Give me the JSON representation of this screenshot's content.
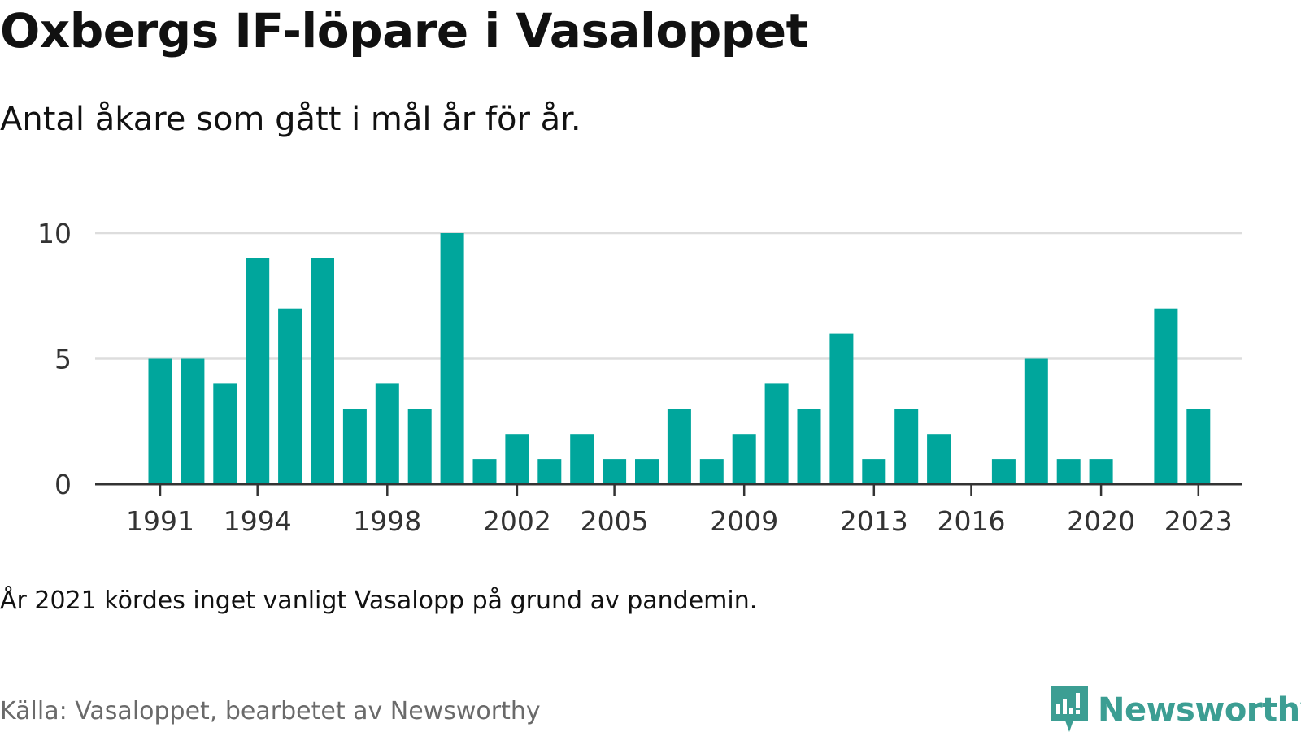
{
  "header": {
    "title": "Oxbergs IF-löpare i Vasaloppet",
    "subtitle": "Antal åkare som gått i mål år för år."
  },
  "footer": {
    "note": "År 2021 kördes inget vanligt Vasalopp på grund av pandemin.",
    "source": "Källa: Vasaloppet, bearbetet av Newsworthy",
    "brand": "Newsworthy"
  },
  "colors": {
    "bar": "#00a69c",
    "gridline": "#dddddd",
    "axis": "#333333",
    "brand": "#3c9e93"
  },
  "icons": {
    "logo": "newsworthy-logo-icon"
  },
  "chart_data": {
    "type": "bar",
    "title": "Oxbergs IF-löpare i Vasaloppet",
    "subtitle": "Antal åkare som gått i mål år för år.",
    "xlabel": "",
    "ylabel": "",
    "ylim": [
      0,
      10
    ],
    "yticks": [
      0,
      5,
      10
    ],
    "xticks": [
      1991,
      1994,
      1998,
      2002,
      2005,
      2009,
      2013,
      2016,
      2020,
      2023
    ],
    "grid": true,
    "x": [
      1991,
      1992,
      1993,
      1994,
      1995,
      1996,
      1997,
      1998,
      1999,
      2000,
      2001,
      2002,
      2003,
      2004,
      2005,
      2006,
      2007,
      2008,
      2009,
      2010,
      2011,
      2012,
      2013,
      2014,
      2015,
      2016,
      2017,
      2018,
      2019,
      2020,
      2021,
      2022,
      2023
    ],
    "values": [
      5,
      5,
      4,
      9,
      7,
      9,
      3,
      4,
      3,
      10,
      1,
      2,
      1,
      2,
      1,
      1,
      3,
      1,
      2,
      4,
      3,
      6,
      1,
      3,
      2,
      0,
      1,
      5,
      1,
      1,
      0,
      7,
      3
    ]
  }
}
